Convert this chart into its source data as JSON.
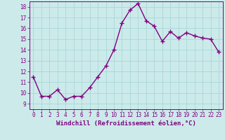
{
  "x": [
    0,
    1,
    2,
    3,
    4,
    5,
    6,
    7,
    8,
    9,
    10,
    11,
    12,
    13,
    14,
    15,
    16,
    17,
    18,
    19,
    20,
    21,
    22,
    23
  ],
  "y": [
    11.5,
    9.7,
    9.7,
    10.3,
    9.4,
    9.7,
    9.7,
    10.5,
    11.5,
    12.5,
    14.0,
    16.5,
    17.7,
    18.3,
    16.7,
    16.2,
    14.8,
    15.7,
    15.1,
    15.6,
    15.3,
    15.1,
    15.0,
    13.8
  ],
  "line_color": "#800080",
  "marker": "+",
  "markersize": 4,
  "linewidth": 1.0,
  "xlabel": "Windchill (Refroidissement éolien,°C)",
  "xlim": [
    -0.5,
    23.5
  ],
  "ylim": [
    8.5,
    18.5
  ],
  "yticks": [
    9,
    10,
    11,
    12,
    13,
    14,
    15,
    16,
    17,
    18
  ],
  "xticks": [
    0,
    1,
    2,
    3,
    4,
    5,
    6,
    7,
    8,
    9,
    10,
    11,
    12,
    13,
    14,
    15,
    16,
    17,
    18,
    19,
    20,
    21,
    22,
    23
  ],
  "grid_color": "#a8d8d8",
  "bg_color": "#cceaea",
  "tick_fontsize": 5.5,
  "xlabel_fontsize": 6.5
}
